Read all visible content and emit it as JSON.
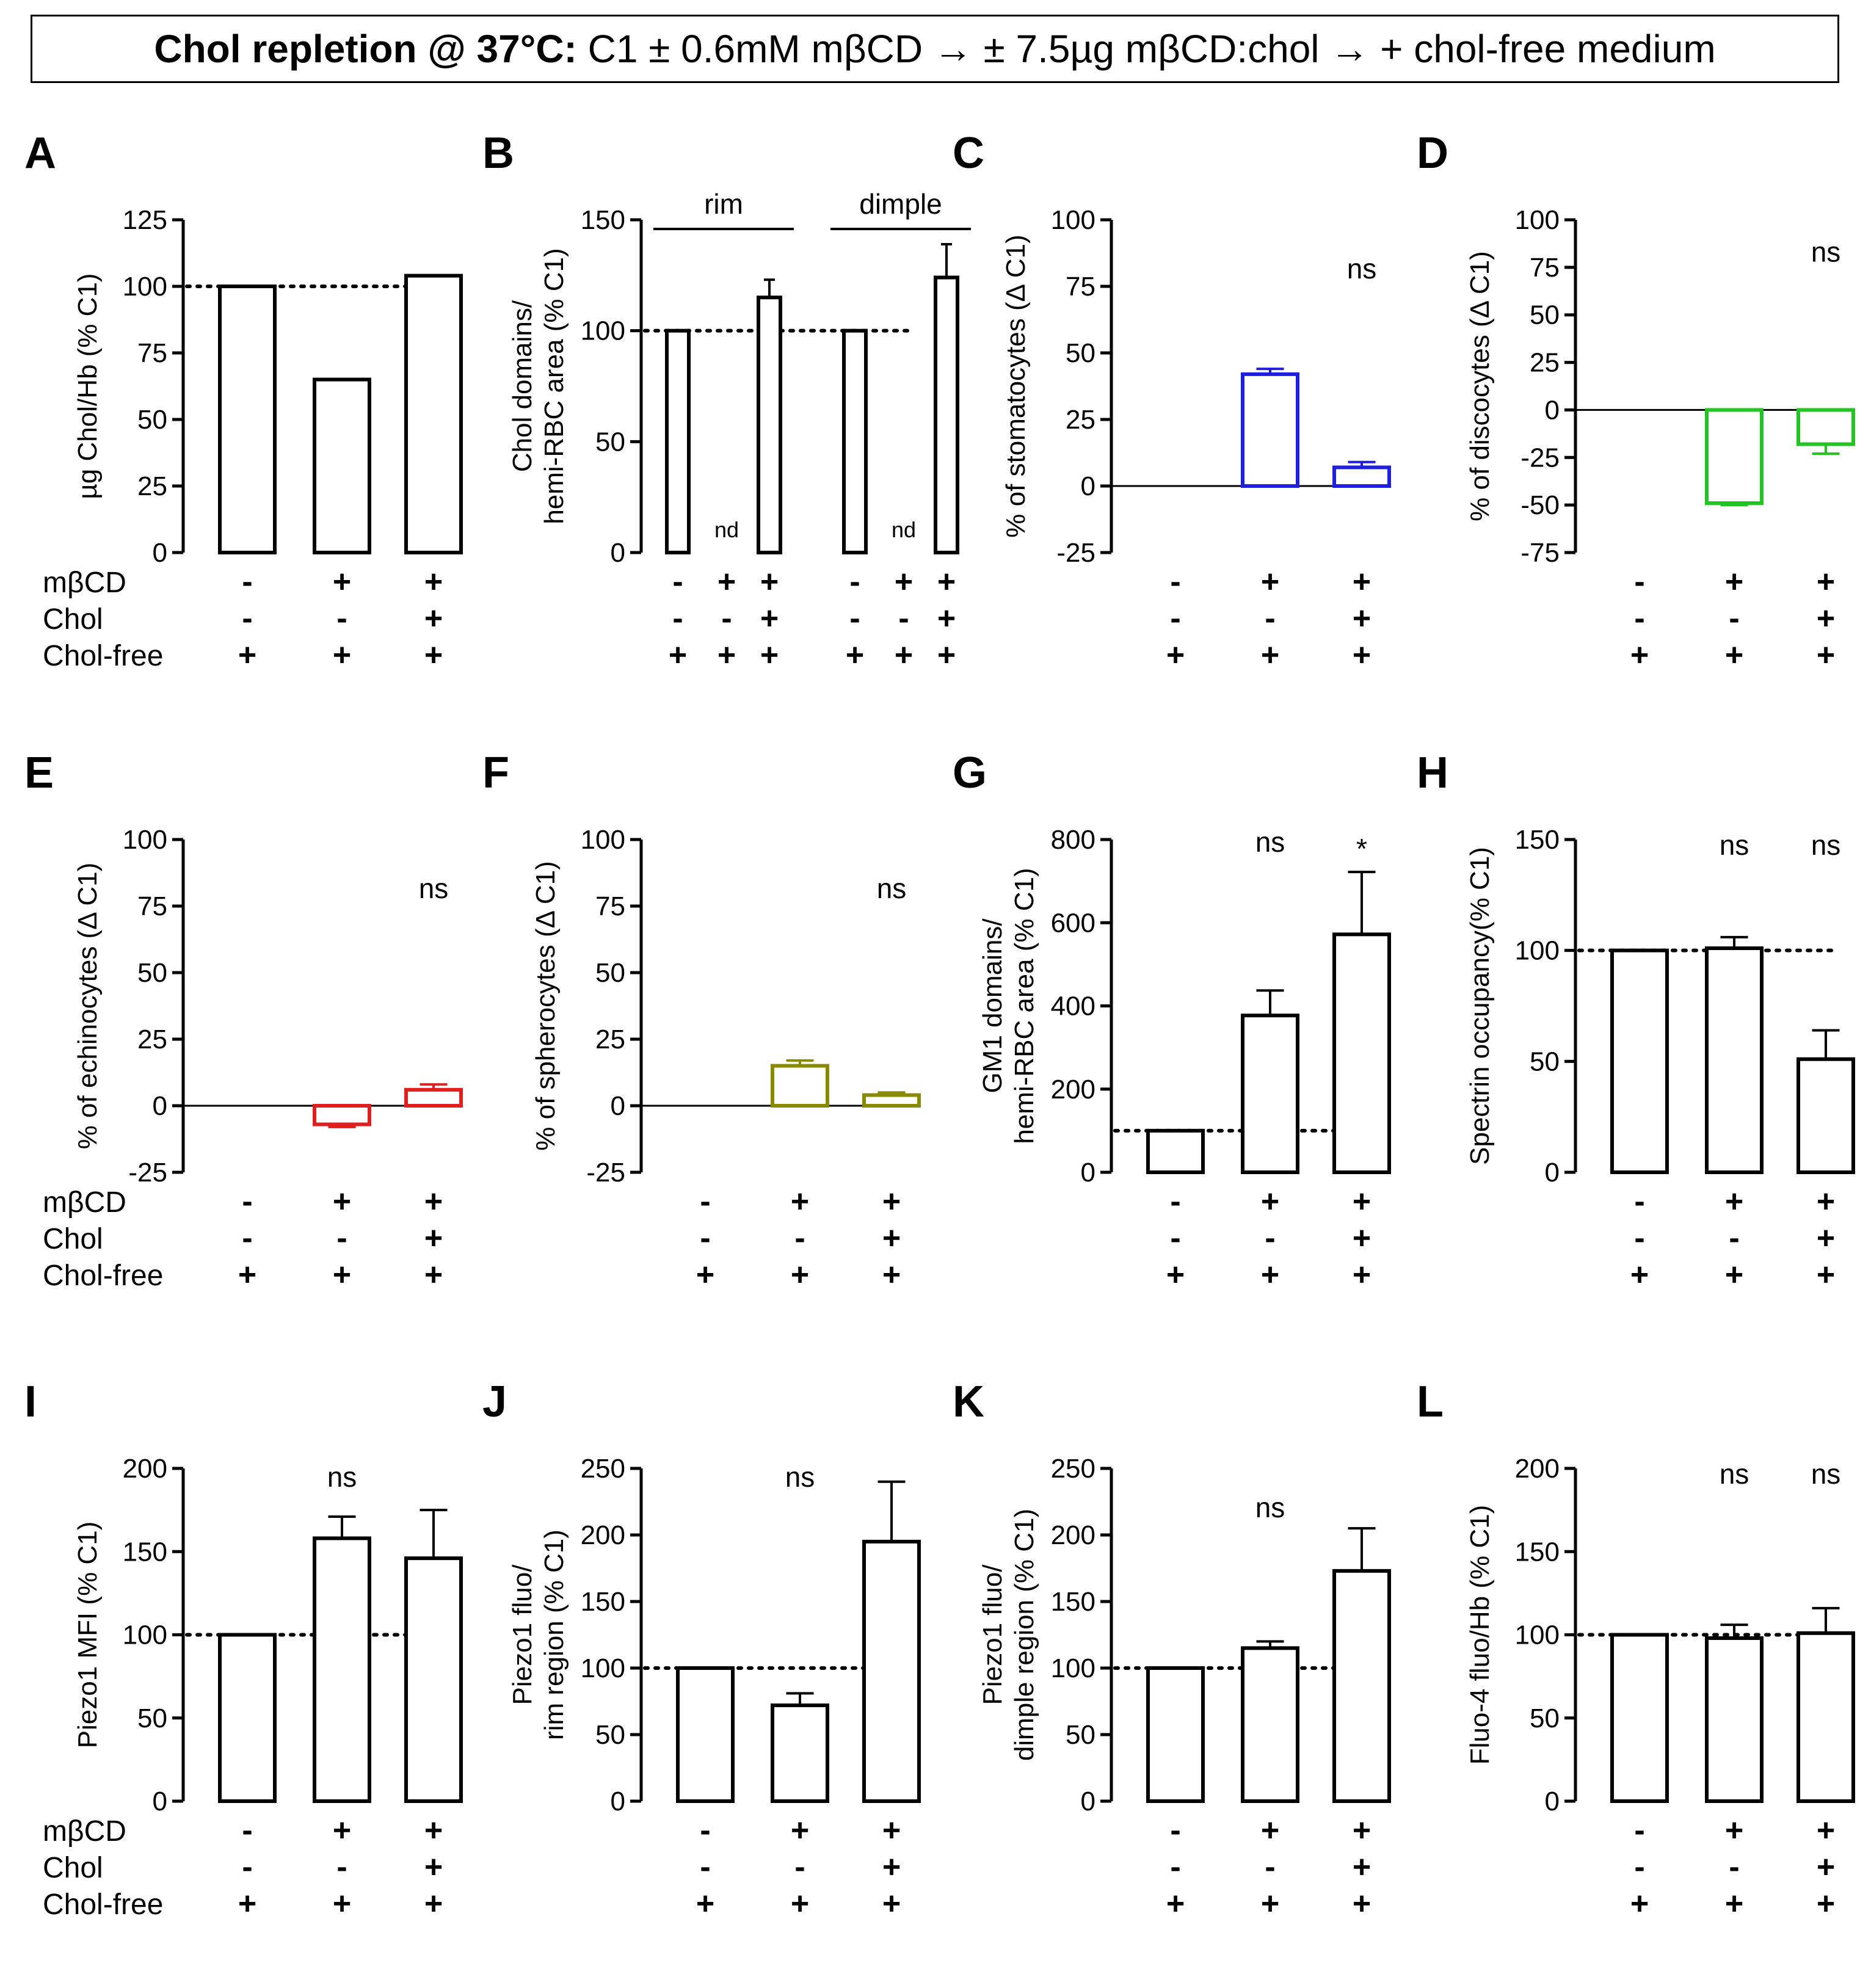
{
  "header": {
    "title_bold": "Chol repletion @ 37°C:",
    "title_rest": " C1 ± 0.6mM mβCD → ± 7.5µg mβCD:chol → + chol-free medium"
  },
  "row_labels": [
    "mβCD",
    "Chol",
    "Chol-free"
  ],
  "conditions": [
    [
      "-",
      "-",
      "+"
    ],
    [
      "+",
      "-",
      "+"
    ],
    [
      "+",
      "+",
      "+"
    ]
  ],
  "chart_data": [
    {
      "id": "A",
      "type": "bar",
      "ylabel": "µg Chol/Hb (% C1)",
      "ylim": [
        0,
        125
      ],
      "yticks": [
        0,
        25,
        50,
        75,
        100,
        125
      ],
      "values": [
        100,
        65,
        104
      ],
      "errors": [
        0,
        0,
        0
      ],
      "color": "#000000",
      "refline": 100,
      "annotations": [
        "",
        "",
        ""
      ],
      "show_row_labels": true
    },
    {
      "id": "B",
      "type": "bar",
      "ylabel": "Chol domains/ hemi-RBC area (% C1)",
      "ylines": [
        "Chol domains/",
        "hemi-RBC area (% C1)"
      ],
      "ylim": [
        0,
        150
      ],
      "yticks": [
        0,
        50,
        100,
        150
      ],
      "groups": [
        {
          "name": "rim",
          "values": [
            100,
            null,
            115
          ],
          "errors": [
            0,
            0,
            8
          ],
          "labels": [
            "",
            "nd",
            ""
          ]
        },
        {
          "name": "dimple",
          "values": [
            100,
            null,
            124
          ],
          "errors": [
            0,
            0,
            15
          ],
          "labels": [
            "",
            "nd",
            ""
          ]
        }
      ],
      "color": "#000000",
      "refline": 100
    },
    {
      "id": "C",
      "type": "bar",
      "ylabel": "% of stomatocytes (Δ C1)",
      "ylim": [
        -25,
        100
      ],
      "yticks": [
        -25,
        0,
        25,
        50,
        75,
        100
      ],
      "values": [
        0,
        42,
        7
      ],
      "errors": [
        0,
        2,
        2
      ],
      "color": "#1f1fe0",
      "refline": null,
      "annotations": [
        "",
        "",
        "ns"
      ],
      "show_row_labels": false
    },
    {
      "id": "D",
      "type": "bar",
      "ylabel": "% of discocytes (Δ C1)",
      "ylim": [
        -75,
        100
      ],
      "yticks": [
        -75,
        -50,
        -25,
        0,
        25,
        50,
        75,
        100
      ],
      "values": [
        0,
        -49,
        -18
      ],
      "errors": [
        0,
        1,
        5
      ],
      "color": "#22c422",
      "refline": null,
      "annotations": [
        "",
        "",
        "ns"
      ],
      "show_row_labels": false
    },
    {
      "id": "E",
      "type": "bar",
      "ylabel": "% of echinocytes (Δ C1)",
      "ylim": [
        -25,
        100
      ],
      "yticks": [
        -25,
        0,
        25,
        50,
        75,
        100
      ],
      "values": [
        0,
        -7,
        6
      ],
      "errors": [
        0,
        1,
        2
      ],
      "color": "#e01f1f",
      "refline": null,
      "annotations": [
        "",
        "",
        "ns"
      ],
      "show_row_labels": true
    },
    {
      "id": "F",
      "type": "bar",
      "ylabel": "% of spherocytes (Δ C1)",
      "ylim": [
        -25,
        100
      ],
      "yticks": [
        -25,
        0,
        25,
        50,
        75,
        100
      ],
      "values": [
        0,
        15,
        4
      ],
      "errors": [
        0,
        2,
        1
      ],
      "color": "#8a8a00",
      "refline": null,
      "annotations": [
        "",
        "",
        "ns"
      ],
      "show_row_labels": false
    },
    {
      "id": "G",
      "type": "bar",
      "ylabel": "GM1 domains/ hemi-RBC area (% C1)",
      "ylines": [
        "GM1 domains/",
        "hemi-RBC area (% C1)"
      ],
      "ylim": [
        0,
        800
      ],
      "yticks": [
        0,
        200,
        400,
        600,
        800
      ],
      "values": [
        100,
        377,
        572
      ],
      "errors": [
        0,
        60,
        150
      ],
      "color": "#000000",
      "refline": 100,
      "annotations": [
        "",
        "ns",
        "*"
      ],
      "show_row_labels": false
    },
    {
      "id": "H",
      "type": "bar",
      "ylabel": "Spectrin occupancy(% C1)",
      "ylim": [
        0,
        150
      ],
      "yticks": [
        0,
        50,
        100,
        150
      ],
      "values": [
        100,
        101,
        51
      ],
      "errors": [
        0,
        5,
        13
      ],
      "color": "#000000",
      "refline": 100,
      "annotations": [
        "",
        "ns",
        "ns"
      ],
      "show_row_labels": false
    },
    {
      "id": "I",
      "type": "bar",
      "ylabel": "Piezo1 MFI (% C1)",
      "ylim": [
        0,
        200
      ],
      "yticks": [
        0,
        50,
        100,
        150,
        200
      ],
      "values": [
        100,
        158,
        146
      ],
      "errors": [
        0,
        13,
        29
      ],
      "color": "#000000",
      "refline": 100,
      "annotations": [
        "",
        "ns",
        ""
      ],
      "show_row_labels": true
    },
    {
      "id": "J",
      "type": "bar",
      "ylabel": "Piezo1 fluo/ rim region (% C1)",
      "ylines": [
        "Piezo1 fluo/",
        "rim region (% C1)"
      ],
      "ylim": [
        0,
        250
      ],
      "yticks": [
        0,
        50,
        100,
        150,
        200,
        250
      ],
      "values": [
        100,
        72,
        195
      ],
      "errors": [
        0,
        9,
        45
      ],
      "color": "#000000",
      "refline": 100,
      "annotations": [
        "",
        "ns",
        ""
      ],
      "show_row_labels": false
    },
    {
      "id": "K",
      "type": "bar",
      "ylabel": "Piezo1 fluo/ dimple region (% C1)",
      "ylines": [
        "Piezo1 fluo/",
        "dimple region (% C1)"
      ],
      "ylim": [
        0,
        250
      ],
      "yticks": [
        0,
        50,
        100,
        150,
        200,
        250
      ],
      "values": [
        100,
        115,
        173
      ],
      "errors": [
        0,
        5,
        32
      ],
      "color": "#000000",
      "refline": 100,
      "annotations": [
        "",
        "ns",
        ""
      ],
      "show_row_labels": false
    },
    {
      "id": "L",
      "type": "bar",
      "ylabel": "Fluo-4 fluo/Hb (% C1)",
      "ylim": [
        0,
        200
      ],
      "yticks": [
        0,
        50,
        100,
        150,
        200
      ],
      "values": [
        100,
        98,
        101
      ],
      "errors": [
        0,
        8,
        15
      ],
      "color": "#000000",
      "refline": 100,
      "annotations": [
        "",
        "ns",
        "ns"
      ],
      "show_row_labels": false
    }
  ]
}
